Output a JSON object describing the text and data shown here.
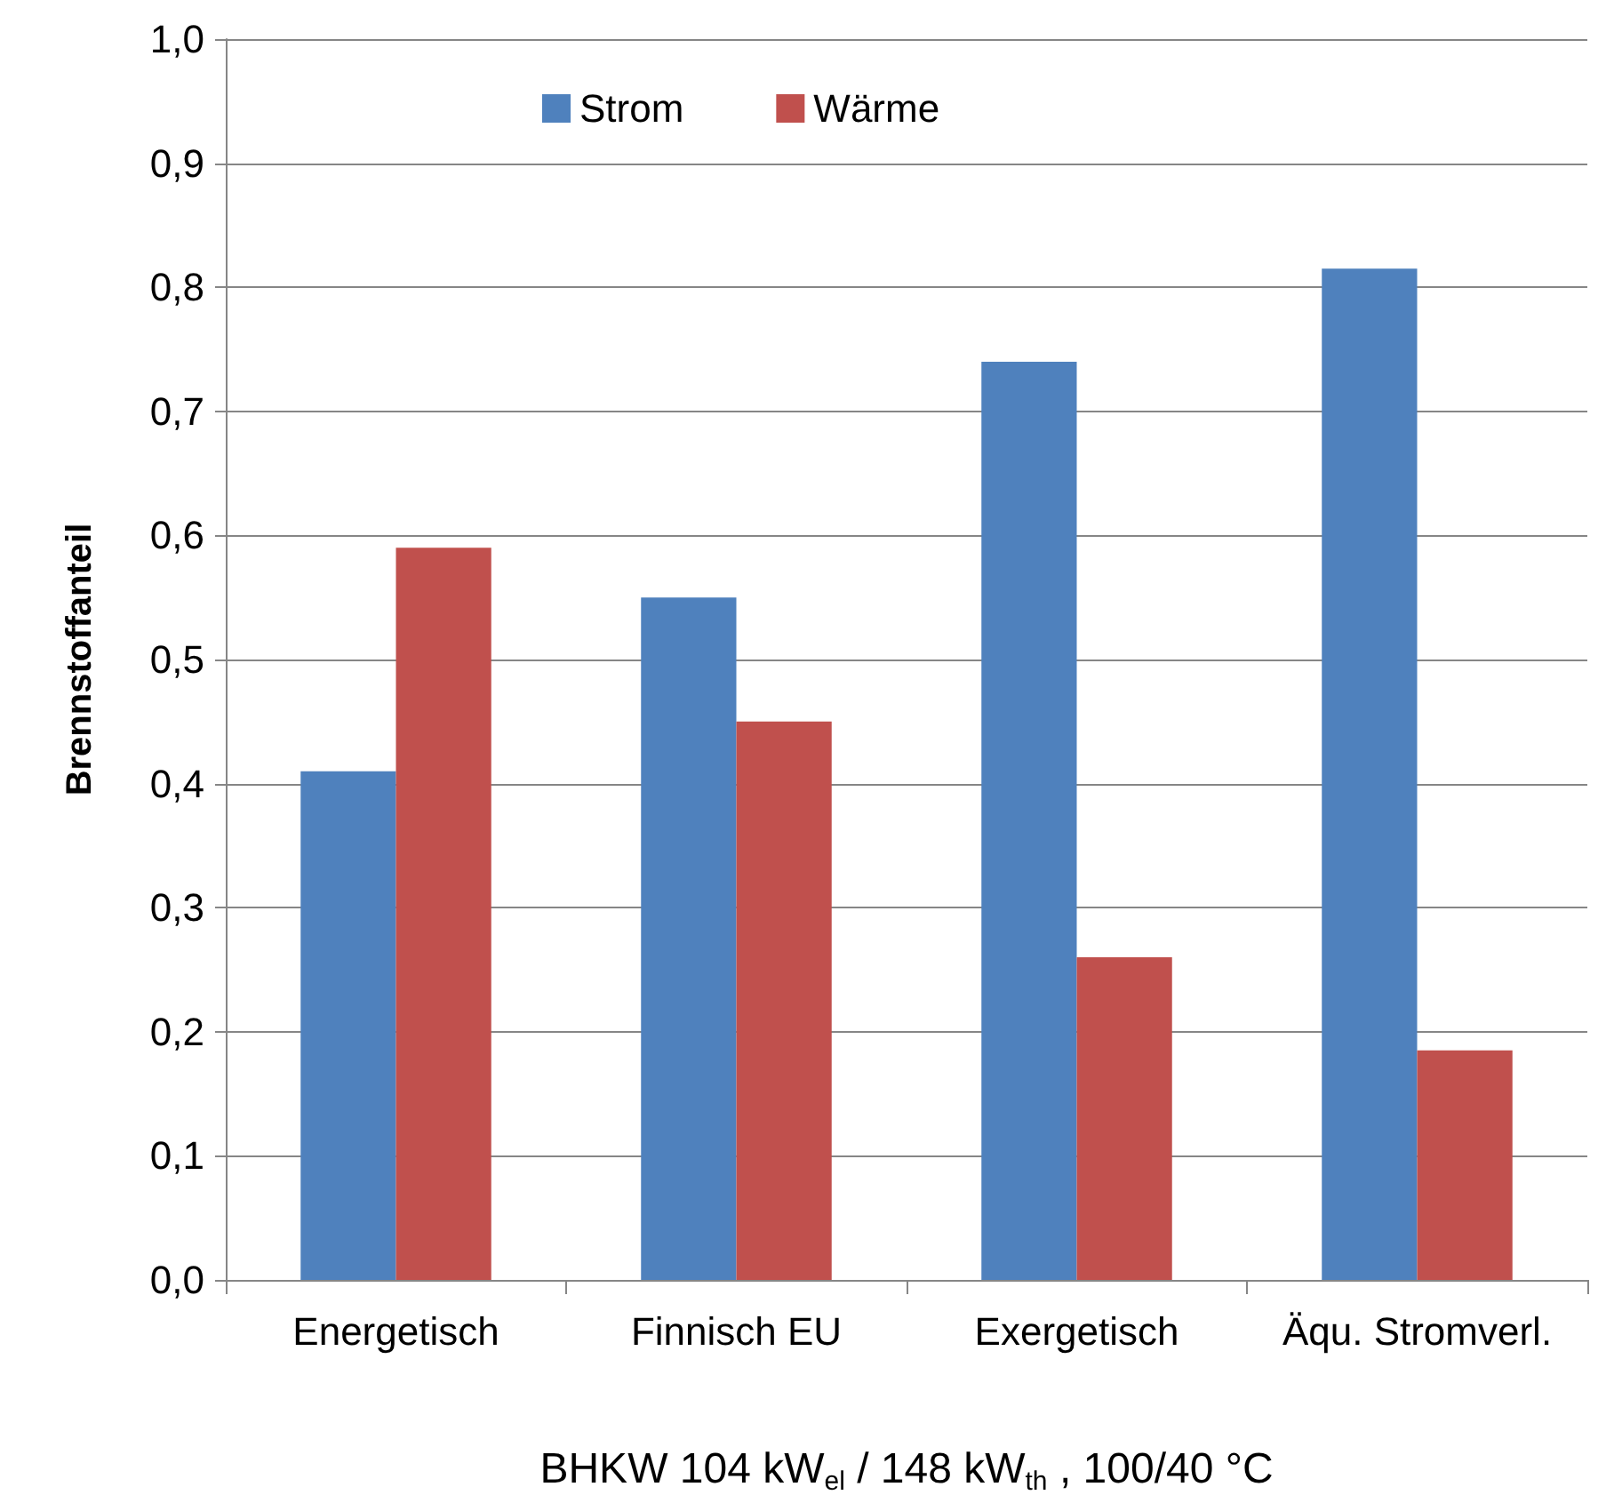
{
  "chart_data": {
    "type": "bar",
    "categories": [
      "Energetisch",
      "Finnisch EU",
      "Exergetisch",
      "Äqu. Stromverl."
    ],
    "series": [
      {
        "name": "Strom",
        "color": "#4f81bd",
        "values": [
          0.41,
          0.55,
          0.74,
          0.815
        ]
      },
      {
        "name": "Wärme",
        "color": "#c0504d",
        "values": [
          0.59,
          0.45,
          0.26,
          0.185
        ]
      }
    ],
    "xlabel": "BHKW 104 kW$_{el}$ / 148 kW$_{th}$ , 100/40 °C",
    "ylabel": "Brennstoffanteil",
    "ylim": [
      0,
      1
    ],
    "yticks": [
      {
        "value": 0,
        "label": "0,0"
      },
      {
        "value": 0.1,
        "label": "0,1"
      },
      {
        "value": 0.2,
        "label": "0,2"
      },
      {
        "value": 0.3,
        "label": "0,3"
      },
      {
        "value": 0.4,
        "label": "0,4"
      },
      {
        "value": 0.5,
        "label": "0,5"
      },
      {
        "value": 0.6,
        "label": "0,6"
      },
      {
        "value": 0.7,
        "label": "0,7"
      },
      {
        "value": 0.8,
        "label": "0,8"
      },
      {
        "value": 0.9,
        "label": "0,9"
      },
      {
        "value": 1,
        "label": "1,0"
      }
    ],
    "grid": "y",
    "legend": "top"
  }
}
